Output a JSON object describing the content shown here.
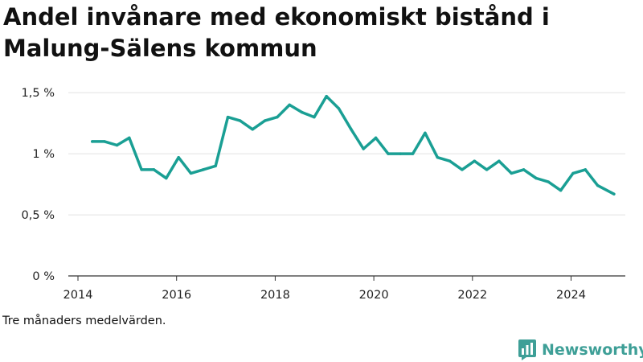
{
  "chart_data": {
    "type": "line",
    "title": "Andel invånare med ekonomiskt bistånd i Malung-Sälens kommun",
    "xlabel": "",
    "ylabel": "",
    "y_ticks": [
      {
        "value": 0,
        "label": "0 %"
      },
      {
        "value": 0.5,
        "label": "0,5 %"
      },
      {
        "value": 1.0,
        "label": "1 %"
      },
      {
        "value": 1.5,
        "label": "1,5 %"
      }
    ],
    "x_ticks": [
      {
        "value": 2014,
        "label": "2014"
      },
      {
        "value": 2016,
        "label": "2016"
      },
      {
        "value": 2018,
        "label": "2018"
      },
      {
        "value": 2020,
        "label": "2020"
      },
      {
        "value": 2022,
        "label": "2022"
      },
      {
        "value": 2024,
        "label": "2024"
      }
    ],
    "xlim": [
      2014,
      2025.1
    ],
    "ylim": [
      0,
      1.6
    ],
    "grid": true,
    "line_color": "#1a9f94",
    "series": [
      {
        "x": [
          2014.29,
          2014.54,
          2014.79,
          2015.04,
          2015.29,
          2015.54,
          2015.79,
          2016.04,
          2016.29,
          2016.54,
          2016.79,
          2017.04,
          2017.29,
          2017.54,
          2017.79,
          2018.04,
          2018.29,
          2018.54,
          2018.79,
          2019.04,
          2019.29,
          2019.54,
          2019.79,
          2020.04,
          2020.29,
          2020.54,
          2020.79,
          2021.04,
          2021.29,
          2021.54,
          2021.79,
          2022.04,
          2022.29,
          2022.54,
          2022.79,
          2023.04,
          2023.29,
          2023.54,
          2023.79,
          2024.04,
          2024.29,
          2024.54,
          2024.87
        ],
        "values": [
          1.1,
          1.1,
          1.07,
          1.13,
          0.87,
          0.87,
          0.8,
          0.97,
          0.84,
          0.87,
          0.9,
          1.3,
          1.27,
          1.2,
          1.27,
          1.3,
          1.4,
          1.34,
          1.3,
          1.47,
          1.37,
          1.2,
          1.04,
          1.13,
          1.0,
          1.0,
          1.0,
          1.17,
          0.97,
          0.94,
          0.87,
          0.94,
          0.87,
          0.94,
          0.84,
          0.87,
          0.8,
          0.77,
          0.7,
          0.84,
          0.87,
          0.74,
          0.67
        ]
      }
    ]
  },
  "footnote": "Tre månaders medelvärden.",
  "brand": {
    "name": "Newsworthy",
    "color": "#3e9f97"
  }
}
